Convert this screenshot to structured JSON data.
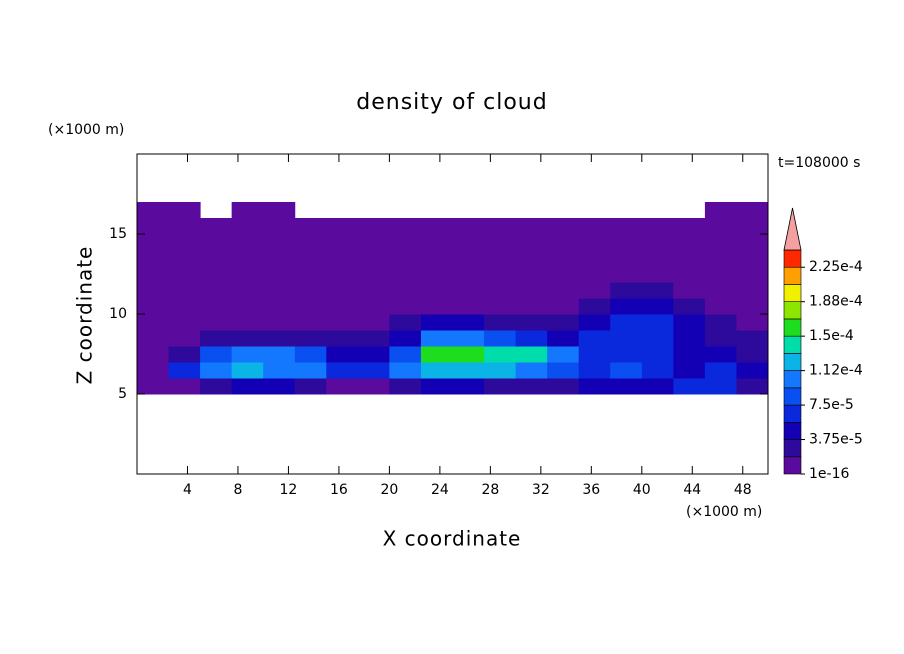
{
  "chart_data": {
    "type": "contour",
    "title": "density of cloud",
    "x_label": "X coordinate",
    "y_label": "Z coordinate",
    "x_unit": "(×1000 m)",
    "y_unit": "(×1000 m)",
    "annotation": "t=108000 s",
    "xlim": [
      0,
      50
    ],
    "ylim": [
      0,
      20
    ],
    "xticks": [
      4,
      8,
      12,
      16,
      20,
      24,
      28,
      32,
      36,
      40,
      44,
      48
    ],
    "yticks": [
      5,
      10,
      15
    ],
    "x_edges": [
      0,
      2.5,
      5,
      7.5,
      10,
      12.5,
      15,
      17.5,
      20,
      22.5,
      25,
      27.5,
      30,
      32.5,
      35,
      37.5,
      40,
      42.5,
      45,
      47.5,
      50
    ],
    "z_edges": [
      0,
      1,
      2,
      3,
      4,
      5,
      6,
      7,
      8,
      9,
      10,
      11,
      12,
      13,
      14,
      15,
      16,
      17,
      18,
      19,
      20
    ],
    "z": [
      [
        null,
        null,
        null,
        null,
        null,
        null,
        null,
        null,
        null,
        null,
        null,
        null,
        null,
        null,
        null,
        null,
        null,
        null,
        null,
        null
      ],
      [
        null,
        null,
        null,
        null,
        null,
        null,
        null,
        null,
        null,
        null,
        null,
        null,
        null,
        null,
        null,
        null,
        null,
        null,
        null,
        null
      ],
      [
        null,
        null,
        null,
        null,
        null,
        null,
        null,
        null,
        null,
        null,
        null,
        null,
        null,
        null,
        null,
        null,
        null,
        null,
        null,
        null
      ],
      [
        null,
        null,
        null,
        null,
        null,
        null,
        null,
        null,
        null,
        null,
        null,
        null,
        null,
        null,
        null,
        null,
        null,
        null,
        null,
        null
      ],
      [
        null,
        null,
        null,
        null,
        null,
        null,
        null,
        null,
        null,
        null,
        null,
        null,
        null,
        null,
        null,
        null,
        null,
        null,
        null,
        null
      ],
      [
        9e-06,
        9e-06,
        2.8e-05,
        4.7e-05,
        4.7e-05,
        2.8e-05,
        9e-06,
        9e-06,
        2.8e-05,
        4.7e-05,
        4.7e-05,
        2.8e-05,
        2.8e-05,
        2.8e-05,
        4.7e-05,
        4.7e-05,
        4.7e-05,
        6.5e-05,
        6.5e-05,
        2.8e-05
      ],
      [
        9e-06,
        6.5e-05,
        0.000103,
        0.000122,
        0.000103,
        0.000103,
        6.5e-05,
        6.5e-05,
        0.000103,
        0.000122,
        0.000122,
        0.000122,
        0.000103,
        8.4e-05,
        6.5e-05,
        8.4e-05,
        6.5e-05,
        4.7e-05,
        6.5e-05,
        4.7e-05
      ],
      [
        9e-06,
        2.8e-05,
        8.4e-05,
        0.000103,
        0.000103,
        8.4e-05,
        4.7e-05,
        4.7e-05,
        8.4e-05,
        0.000159,
        0.000159,
        0.00014,
        0.00014,
        0.000103,
        6.5e-05,
        6.5e-05,
        6.5e-05,
        4.7e-05,
        4.7e-05,
        2.8e-05
      ],
      [
        9e-06,
        9e-06,
        2.8e-05,
        2.8e-05,
        2.8e-05,
        2.8e-05,
        2.8e-05,
        2.8e-05,
        4.7e-05,
        0.000103,
        0.000103,
        8.4e-05,
        6.5e-05,
        4.7e-05,
        6.5e-05,
        6.5e-05,
        6.5e-05,
        4.7e-05,
        2.8e-05,
        2.8e-05
      ],
      [
        9e-06,
        9e-06,
        9e-06,
        9e-06,
        9e-06,
        9e-06,
        9e-06,
        9e-06,
        2.8e-05,
        4.7e-05,
        4.7e-05,
        2.8e-05,
        2.8e-05,
        2.8e-05,
        4.7e-05,
        6.5e-05,
        6.5e-05,
        4.7e-05,
        2.8e-05,
        9e-06
      ],
      [
        9e-06,
        9e-06,
        9e-06,
        9e-06,
        9e-06,
        9e-06,
        9e-06,
        9e-06,
        9e-06,
        9e-06,
        9e-06,
        9e-06,
        9e-06,
        9e-06,
        2.8e-05,
        4.7e-05,
        4.7e-05,
        2.8e-05,
        9e-06,
        9e-06
      ],
      [
        9e-06,
        9e-06,
        9e-06,
        9e-06,
        9e-06,
        9e-06,
        9e-06,
        9e-06,
        9e-06,
        9e-06,
        9e-06,
        9e-06,
        9e-06,
        9e-06,
        9e-06,
        2.8e-05,
        2.8e-05,
        9e-06,
        9e-06,
        9e-06
      ],
      [
        9e-06,
        9e-06,
        9e-06,
        9e-06,
        9e-06,
        9e-06,
        9e-06,
        9e-06,
        9e-06,
        9e-06,
        9e-06,
        9e-06,
        9e-06,
        9e-06,
        9e-06,
        9e-06,
        9e-06,
        9e-06,
        9e-06,
        9e-06
      ],
      [
        9e-06,
        9e-06,
        9e-06,
        9e-06,
        9e-06,
        9e-06,
        9e-06,
        9e-06,
        9e-06,
        9e-06,
        9e-06,
        9e-06,
        9e-06,
        9e-06,
        9e-06,
        9e-06,
        9e-06,
        9e-06,
        9e-06,
        9e-06
      ],
      [
        9e-06,
        9e-06,
        9e-06,
        9e-06,
        9e-06,
        9e-06,
        9e-06,
        9e-06,
        9e-06,
        9e-06,
        9e-06,
        9e-06,
        9e-06,
        9e-06,
        9e-06,
        9e-06,
        9e-06,
        9e-06,
        9e-06,
        9e-06
      ],
      [
        9e-06,
        9e-06,
        9e-06,
        9e-06,
        9e-06,
        9e-06,
        9e-06,
        9e-06,
        9e-06,
        9e-06,
        9e-06,
        9e-06,
        9e-06,
        9e-06,
        9e-06,
        9e-06,
        9e-06,
        9e-06,
        9e-06,
        9e-06
      ],
      [
        9e-06,
        9e-06,
        null,
        9e-06,
        9e-06,
        null,
        null,
        null,
        null,
        null,
        null,
        null,
        null,
        null,
        null,
        null,
        null,
        null,
        9e-06,
        9e-06
      ],
      [
        null,
        null,
        null,
        null,
        null,
        null,
        null,
        null,
        null,
        null,
        null,
        null,
        null,
        null,
        null,
        null,
        null,
        null,
        null,
        null
      ],
      [
        null,
        null,
        null,
        null,
        null,
        null,
        null,
        null,
        null,
        null,
        null,
        null,
        null,
        null,
        null,
        null,
        null,
        null,
        null,
        null
      ],
      [
        null,
        null,
        null,
        null,
        null,
        null,
        null,
        null,
        null,
        null,
        null,
        null,
        null,
        null,
        null,
        null,
        null,
        null,
        null,
        null
      ]
    ],
    "colorbar": {
      "levels": [
        1e-16,
        1.875e-05,
        3.75e-05,
        5.625e-05,
        7.5e-05,
        9.375e-05,
        0.0001125,
        0.00013125,
        0.00015,
        0.00016875,
        0.0001875,
        0.00020625,
        0.000225,
        0.00024375
      ],
      "colors": [
        "#5a0a9c",
        "#2d0a9b",
        "#1400b4",
        "#0a28dc",
        "#0a50f0",
        "#1478ff",
        "#0ab4e6",
        "#00dcaa",
        "#1edc1e",
        "#8ce600",
        "#f0f000",
        "#ffa000",
        "#ff2800"
      ],
      "over_color": "#f4a0a0",
      "ticks": [
        1e-16,
        {
          "value": 3.75e-05,
          "label": "3.75e-5"
        },
        {
          "value": 7.5e-05,
          "label": "7.5e-5"
        },
        {
          "value": 0.0001125,
          "label": "1.12e-4"
        },
        {
          "value": 0.00015,
          "label": "1.5e-4"
        },
        {
          "value": 0.0001875,
          "label": "1.88e-4"
        },
        {
          "value": 0.000225,
          "label": "2.25e-4"
        }
      ]
    }
  }
}
